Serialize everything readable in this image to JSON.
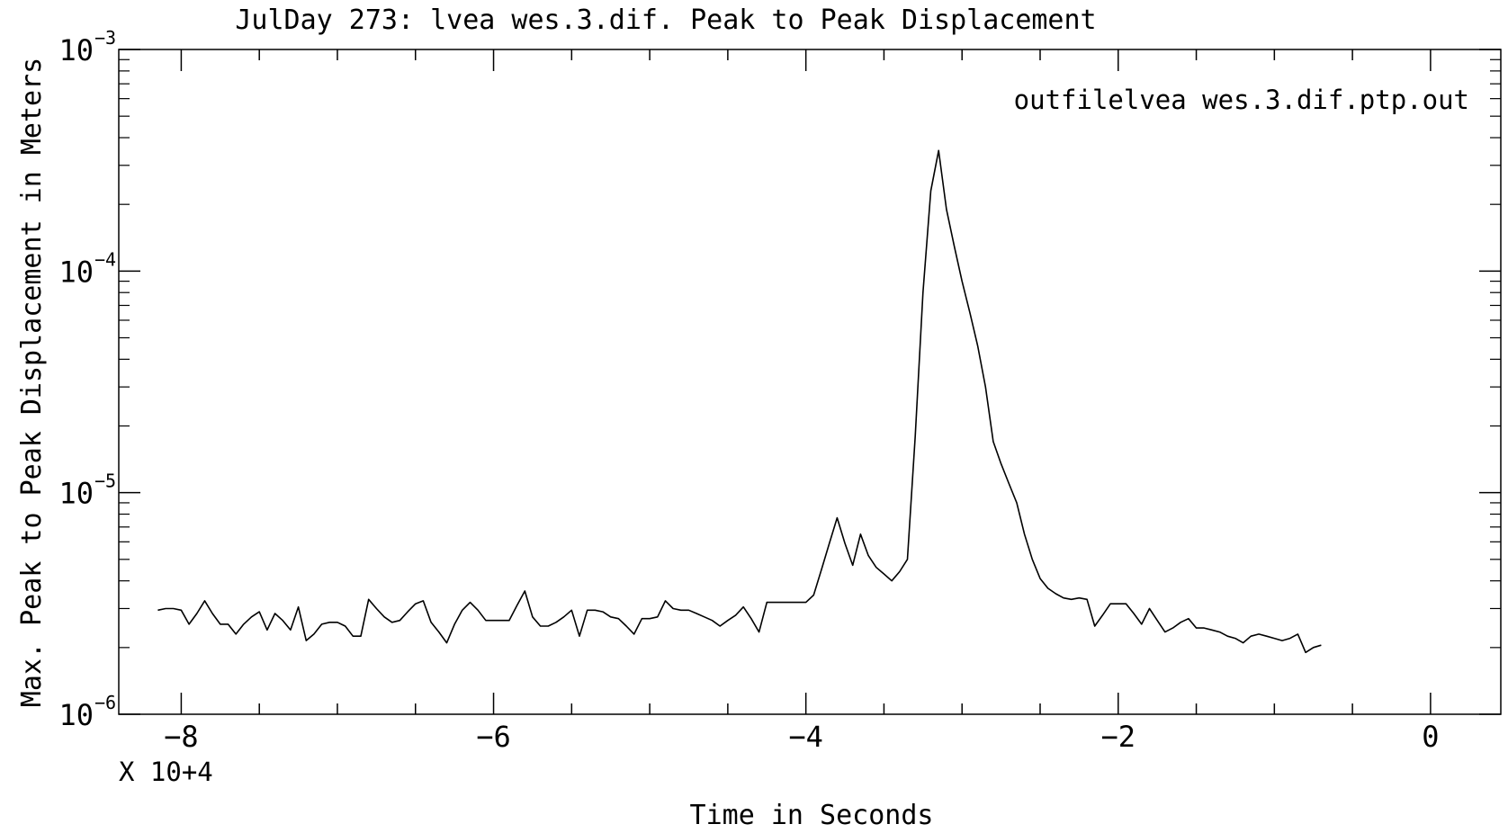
{
  "chart_data": {
    "type": "line",
    "title": "JulDay 273: lvea wes.3.dif. Peak to Peak Displacement",
    "xlabel": "Time in Seconds",
    "ylabel": "Max. Peak to Peak Displacement in Meters",
    "x_multiplier_label": "X 10+4",
    "annotation": "outfilelvea wes.3.dif.ptp.out",
    "xlim": [
      -84000,
      4500
    ],
    "ylim": [
      1e-06,
      0.001
    ],
    "yscale": "log",
    "grid": false,
    "x_ticks": [
      {
        "value": -80000,
        "label": "−8"
      },
      {
        "value": -60000,
        "label": "−6"
      },
      {
        "value": -40000,
        "label": "−4"
      },
      {
        "value": -20000,
        "label": "−2"
      },
      {
        "value": 0,
        "label": "0"
      }
    ],
    "y_ticks": [
      {
        "value": 1e-06,
        "base": "10",
        "exp": "−6"
      },
      {
        "value": 1e-05,
        "base": "10",
        "exp": "−5"
      },
      {
        "value": 0.0001,
        "base": "10",
        "exp": "−4"
      },
      {
        "value": 0.001,
        "base": "10",
        "exp": "−3"
      }
    ],
    "series": [
      {
        "color": "#000000",
        "points": [
          [
            -81500,
            2.95e-06
          ],
          [
            -81000,
            3e-06
          ],
          [
            -80500,
            3e-06
          ],
          [
            -80000,
            2.95e-06
          ],
          [
            -79500,
            2.55e-06
          ],
          [
            -79000,
            2.85e-06
          ],
          [
            -78500,
            3.25e-06
          ],
          [
            -78000,
            2.85e-06
          ],
          [
            -77500,
            2.55e-06
          ],
          [
            -77000,
            2.55e-06
          ],
          [
            -76500,
            2.3e-06
          ],
          [
            -76000,
            2.55e-06
          ],
          [
            -75500,
            2.75e-06
          ],
          [
            -75000,
            2.9e-06
          ],
          [
            -74500,
            2.4e-06
          ],
          [
            -74000,
            2.85e-06
          ],
          [
            -73500,
            2.65e-06
          ],
          [
            -73000,
            2.4e-06
          ],
          [
            -72500,
            3.05e-06
          ],
          [
            -72000,
            2.15e-06
          ],
          [
            -71500,
            2.3e-06
          ],
          [
            -71000,
            2.55e-06
          ],
          [
            -70500,
            2.6e-06
          ],
          [
            -70000,
            2.6e-06
          ],
          [
            -69500,
            2.5e-06
          ],
          [
            -69000,
            2.25e-06
          ],
          [
            -68500,
            2.25e-06
          ],
          [
            -68000,
            3.3e-06
          ],
          [
            -67500,
            3e-06
          ],
          [
            -67000,
            2.75e-06
          ],
          [
            -66500,
            2.6e-06
          ],
          [
            -66000,
            2.65e-06
          ],
          [
            -65500,
            2.9e-06
          ],
          [
            -65000,
            3.15e-06
          ],
          [
            -64500,
            3.25e-06
          ],
          [
            -64000,
            2.6e-06
          ],
          [
            -63500,
            2.35e-06
          ],
          [
            -63000,
            2.1e-06
          ],
          [
            -62500,
            2.55e-06
          ],
          [
            -62000,
            2.95e-06
          ],
          [
            -61500,
            3.2e-06
          ],
          [
            -61000,
            2.95e-06
          ],
          [
            -60500,
            2.65e-06
          ],
          [
            -60000,
            2.65e-06
          ],
          [
            -59500,
            2.65e-06
          ],
          [
            -59000,
            2.65e-06
          ],
          [
            -58500,
            3.1e-06
          ],
          [
            -58000,
            3.6e-06
          ],
          [
            -57500,
            2.75e-06
          ],
          [
            -57000,
            2.5e-06
          ],
          [
            -56500,
            2.5e-06
          ],
          [
            -56000,
            2.6e-06
          ],
          [
            -55500,
            2.75e-06
          ],
          [
            -55000,
            2.95e-06
          ],
          [
            -54500,
            2.25e-06
          ],
          [
            -54000,
            2.95e-06
          ],
          [
            -53500,
            2.95e-06
          ],
          [
            -53000,
            2.9e-06
          ],
          [
            -52500,
            2.75e-06
          ],
          [
            -52000,
            2.7e-06
          ],
          [
            -51500,
            2.5e-06
          ],
          [
            -51000,
            2.3e-06
          ],
          [
            -50500,
            2.7e-06
          ],
          [
            -50000,
            2.7e-06
          ],
          [
            -49500,
            2.75e-06
          ],
          [
            -49000,
            3.25e-06
          ],
          [
            -48500,
            3e-06
          ],
          [
            -48000,
            2.95e-06
          ],
          [
            -47500,
            2.95e-06
          ],
          [
            -47000,
            2.85e-06
          ],
          [
            -46500,
            2.75e-06
          ],
          [
            -46000,
            2.65e-06
          ],
          [
            -45500,
            2.5e-06
          ],
          [
            -45000,
            2.65e-06
          ],
          [
            -44500,
            2.8e-06
          ],
          [
            -44000,
            3.05e-06
          ],
          [
            -43500,
            2.7e-06
          ],
          [
            -43000,
            2.35e-06
          ],
          [
            -42500,
            3.2e-06
          ],
          [
            -42000,
            3.2e-06
          ],
          [
            -41500,
            3.2e-06
          ],
          [
            -41000,
            3.2e-06
          ],
          [
            -40500,
            3.2e-06
          ],
          [
            -40000,
            3.2e-06
          ],
          [
            -39500,
            3.45e-06
          ],
          [
            -39000,
            4.5e-06
          ],
          [
            -38500,
            5.9e-06
          ],
          [
            -38000,
            7.7e-06
          ],
          [
            -37500,
            5.9e-06
          ],
          [
            -37000,
            4.7e-06
          ],
          [
            -36500,
            6.5e-06
          ],
          [
            -36000,
            5.2e-06
          ],
          [
            -35500,
            4.6e-06
          ],
          [
            -35000,
            4.3e-06
          ],
          [
            -34500,
            4e-06
          ],
          [
            -34000,
            4.4e-06
          ],
          [
            -33500,
            5e-06
          ],
          [
            -33000,
            1.8e-05
          ],
          [
            -32500,
            8e-05
          ],
          [
            -32000,
            0.00023
          ],
          [
            -31500,
            0.00035
          ],
          [
            -31000,
            0.00019
          ],
          [
            -30500,
            0.00013
          ],
          [
            -30000,
            9e-05
          ],
          [
            -29500,
            6.5e-05
          ],
          [
            -29000,
            4.6e-05
          ],
          [
            -28500,
            3e-05
          ],
          [
            -28000,
            1.7e-05
          ],
          [
            -27500,
            1.35e-05
          ],
          [
            -27000,
            1.1e-05
          ],
          [
            -26500,
            9e-06
          ],
          [
            -26000,
            6.5e-06
          ],
          [
            -25500,
            5e-06
          ],
          [
            -25000,
            4.1e-06
          ],
          [
            -24500,
            3.7e-06
          ],
          [
            -24000,
            3.5e-06
          ],
          [
            -23500,
            3.35e-06
          ],
          [
            -23000,
            3.3e-06
          ],
          [
            -22500,
            3.35e-06
          ],
          [
            -22000,
            3.3e-06
          ],
          [
            -21500,
            2.5e-06
          ],
          [
            -21000,
            2.8e-06
          ],
          [
            -20500,
            3.15e-06
          ],
          [
            -20000,
            3.15e-06
          ],
          [
            -19500,
            3.15e-06
          ],
          [
            -19000,
            2.85e-06
          ],
          [
            -18500,
            2.55e-06
          ],
          [
            -18000,
            3e-06
          ],
          [
            -17500,
            2.65e-06
          ],
          [
            -17000,
            2.35e-06
          ],
          [
            -16500,
            2.45e-06
          ],
          [
            -16000,
            2.6e-06
          ],
          [
            -15500,
            2.7e-06
          ],
          [
            -15000,
            2.45e-06
          ],
          [
            -14500,
            2.45e-06
          ],
          [
            -14000,
            2.4e-06
          ],
          [
            -13500,
            2.35e-06
          ],
          [
            -13000,
            2.25e-06
          ],
          [
            -12500,
            2.2e-06
          ],
          [
            -12000,
            2.1e-06
          ],
          [
            -11500,
            2.25e-06
          ],
          [
            -11000,
            2.3e-06
          ],
          [
            -10500,
            2.25e-06
          ],
          [
            -10000,
            2.2e-06
          ],
          [
            -9500,
            2.15e-06
          ],
          [
            -9000,
            2.2e-06
          ],
          [
            -8500,
            2.3e-06
          ],
          [
            -8000,
            1.9e-06
          ],
          [
            -7500,
            2e-06
          ],
          [
            -7000,
            2.05e-06
          ]
        ]
      }
    ]
  }
}
